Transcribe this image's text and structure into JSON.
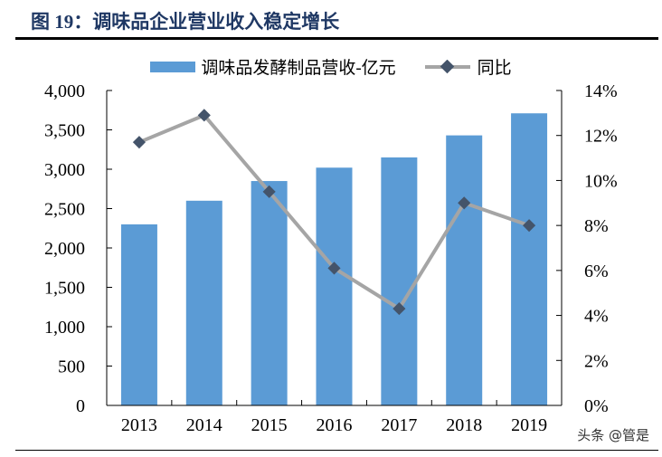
{
  "figure": {
    "title": "图 19：调味品企业营业收入稳定增长",
    "watermark": "头条 @管是"
  },
  "chart_data": {
    "type": "bar+line",
    "title": "",
    "categories": [
      "2013",
      "2014",
      "2015",
      "2016",
      "2017",
      "2018",
      "2019"
    ],
    "series": [
      {
        "name": "调味品发酵制品营收-亿元",
        "type": "bar",
        "axis": "left",
        "color": "#5b9bd5",
        "values": [
          2300,
          2600,
          2850,
          3020,
          3150,
          3430,
          3710
        ]
      },
      {
        "name": "同比",
        "type": "line",
        "axis": "right",
        "color": "#a5a5a5",
        "marker_color": "#44546a",
        "values": [
          11.7,
          12.9,
          9.5,
          6.1,
          4.3,
          9.0,
          8.0
        ]
      }
    ],
    "y_left": {
      "range": [
        0,
        4000
      ],
      "ticks": [
        "0",
        "500",
        "1,000",
        "1,500",
        "2,000",
        "2,500",
        "3,000",
        "3,500",
        "4,000"
      ]
    },
    "y_right": {
      "range": [
        0,
        14
      ],
      "ticks": [
        "0%",
        "2%",
        "4%",
        "6%",
        "8%",
        "10%",
        "12%",
        "14%"
      ]
    },
    "legend": "top",
    "grid": false
  }
}
